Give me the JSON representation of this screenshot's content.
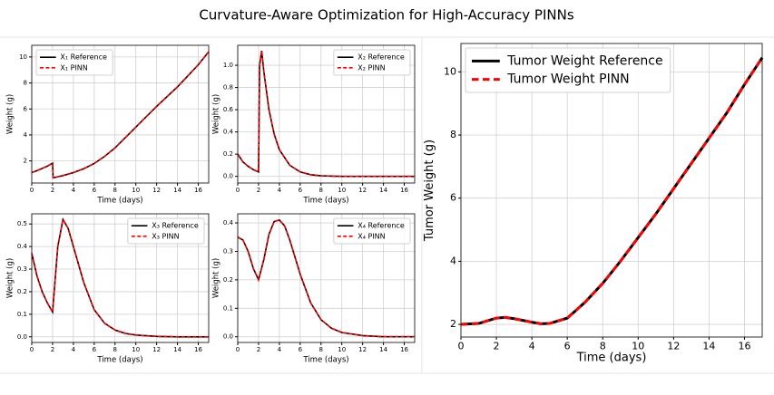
{
  "title": "Curvature-Aware Optimization for High-Accuracy PINNs",
  "chart_data": [
    {
      "type": "line",
      "xlabel": "Time (days)",
      "ylabel": "Weight (g)",
      "legend": "upper left",
      "grid": true,
      "x": [
        0,
        0.5,
        1,
        1.5,
        2,
        2.05,
        2.5,
        3,
        4,
        5,
        6,
        7,
        8,
        9,
        10,
        11,
        12,
        13,
        14,
        15,
        16,
        17
      ],
      "series": [
        {
          "name": "X₁ Reference",
          "color": "#000000",
          "linestyle": "solid",
          "values": [
            1.1,
            1.25,
            1.42,
            1.6,
            1.82,
            0.7,
            0.78,
            0.87,
            1.1,
            1.4,
            1.8,
            2.35,
            3.0,
            3.8,
            4.6,
            5.4,
            6.2,
            6.95,
            7.7,
            8.55,
            9.4,
            10.4
          ]
        },
        {
          "name": "X₁ PINN",
          "color": "#ff0000",
          "linestyle": "dashed",
          "values": [
            1.1,
            1.25,
            1.42,
            1.6,
            1.82,
            0.7,
            0.78,
            0.87,
            1.1,
            1.4,
            1.8,
            2.35,
            3.0,
            3.8,
            4.6,
            5.4,
            6.2,
            6.95,
            7.7,
            8.55,
            9.4,
            10.4
          ]
        }
      ],
      "xlim": [
        0,
        17
      ],
      "xticks": [
        0,
        2,
        4,
        6,
        8,
        10,
        12,
        14,
        16
      ],
      "ylim": [
        0.3,
        10.9
      ],
      "yticks": [
        2,
        4,
        6,
        8,
        10
      ]
    },
    {
      "type": "line",
      "xlabel": "Time (days)",
      "ylabel": "Weight (g)",
      "legend": "upper right",
      "grid": true,
      "x": [
        0,
        0.5,
        1,
        1.5,
        2,
        2.1,
        2.3,
        2.5,
        3,
        3.5,
        4,
        5,
        6,
        7,
        8,
        10,
        12,
        14,
        17
      ],
      "series": [
        {
          "name": "X₂ Reference",
          "color": "#000000",
          "linestyle": "solid",
          "values": [
            0.2,
            0.13,
            0.09,
            0.06,
            0.04,
            1.0,
            1.13,
            0.95,
            0.6,
            0.38,
            0.24,
            0.1,
            0.04,
            0.015,
            0.005,
            0,
            0,
            0,
            0
          ]
        },
        {
          "name": "X₂ PINN",
          "color": "#ff0000",
          "linestyle": "dashed",
          "values": [
            0.2,
            0.13,
            0.09,
            0.06,
            0.04,
            1.0,
            1.13,
            0.95,
            0.6,
            0.38,
            0.24,
            0.1,
            0.04,
            0.015,
            0.005,
            0,
            0,
            0,
            0
          ]
        }
      ],
      "xlim": [
        0,
        17
      ],
      "xticks": [
        0,
        2,
        4,
        6,
        8,
        10,
        12,
        14,
        16
      ],
      "ylim": [
        -0.06,
        1.18
      ],
      "yticks": [
        {
          "value": 0,
          "label": "0.0"
        },
        0.2,
        0.4,
        0.6,
        0.8,
        {
          "value": 1,
          "label": "1.0"
        }
      ]
    },
    {
      "type": "line",
      "xlabel": "Time (days)",
      "ylabel": "Weight (g)",
      "legend": "upper right",
      "grid": true,
      "x": [
        0,
        0.5,
        1,
        1.5,
        2,
        2.5,
        3,
        3.5,
        4,
        5,
        6,
        7,
        8,
        9,
        10,
        12,
        14,
        17
      ],
      "series": [
        {
          "name": "X₃ Reference",
          "color": "#000000",
          "linestyle": "solid",
          "values": [
            0.37,
            0.27,
            0.2,
            0.15,
            0.11,
            0.4,
            0.52,
            0.48,
            0.4,
            0.24,
            0.12,
            0.06,
            0.03,
            0.015,
            0.008,
            0.002,
            0,
            0
          ]
        },
        {
          "name": "X₃ PINN",
          "color": "#ff0000",
          "linestyle": "dashed",
          "values": [
            0.37,
            0.27,
            0.2,
            0.15,
            0.11,
            0.4,
            0.52,
            0.48,
            0.4,
            0.24,
            0.12,
            0.06,
            0.03,
            0.015,
            0.008,
            0.002,
            0,
            0
          ]
        }
      ],
      "xlim": [
        0,
        17
      ],
      "xticks": [
        0,
        2,
        4,
        6,
        8,
        10,
        12,
        14,
        16
      ],
      "ylim": [
        -0.025,
        0.545
      ],
      "yticks": [
        {
          "value": 0,
          "label": "0.0"
        },
        0.1,
        0.2,
        0.3,
        0.4,
        0.5
      ]
    },
    {
      "type": "line",
      "xlabel": "Time (days)",
      "ylabel": "Weight (g)",
      "legend": "upper right",
      "grid": true,
      "x": [
        0,
        0.5,
        1,
        1.5,
        2,
        2.5,
        3,
        3.5,
        4,
        4.5,
        5,
        6,
        7,
        8,
        9,
        10,
        12,
        14,
        17
      ],
      "series": [
        {
          "name": "X₄ Reference",
          "color": "#000000",
          "linestyle": "solid",
          "values": [
            0.35,
            0.34,
            0.3,
            0.24,
            0.2,
            0.27,
            0.36,
            0.405,
            0.41,
            0.39,
            0.34,
            0.22,
            0.12,
            0.06,
            0.03,
            0.015,
            0.004,
            0,
            0
          ]
        },
        {
          "name": "X₄ PINN",
          "color": "#ff0000",
          "linestyle": "dashed",
          "values": [
            0.35,
            0.34,
            0.3,
            0.24,
            0.2,
            0.27,
            0.36,
            0.405,
            0.41,
            0.39,
            0.34,
            0.22,
            0.12,
            0.06,
            0.03,
            0.015,
            0.004,
            0,
            0
          ]
        }
      ],
      "xlim": [
        0,
        17
      ],
      "xticks": [
        0,
        2,
        4,
        6,
        8,
        10,
        12,
        14,
        16
      ],
      "ylim": [
        -0.02,
        0.432
      ],
      "yticks": [
        {
          "value": 0,
          "label": "0.0"
        },
        0.1,
        0.2,
        0.3,
        0.4
      ]
    },
    {
      "type": "line",
      "xlabel": "Time (days)",
      "ylabel": "Tumor Weight (g)",
      "legend": "upper left",
      "grid": true,
      "x": [
        0,
        1,
        2,
        2.5,
        3,
        4,
        4.5,
        5,
        6,
        7,
        8,
        9,
        10,
        11,
        12,
        13,
        14,
        15,
        16,
        17
      ],
      "series": [
        {
          "name": "Tumor Weight Reference",
          "color": "#000000",
          "linestyle": "solid",
          "values": [
            2.0,
            2.03,
            2.2,
            2.22,
            2.18,
            2.07,
            2.02,
            2.03,
            2.2,
            2.7,
            3.3,
            4.0,
            4.75,
            5.5,
            6.3,
            7.1,
            7.9,
            8.7,
            9.6,
            10.45
          ]
        },
        {
          "name": "Tumor Weight PINN",
          "color": "#ff0000",
          "linestyle": "dashed",
          "values": [
            2.0,
            2.03,
            2.2,
            2.22,
            2.18,
            2.07,
            2.02,
            2.03,
            2.2,
            2.7,
            3.3,
            4.0,
            4.75,
            5.5,
            6.3,
            7.1,
            7.9,
            8.7,
            9.6,
            10.45
          ]
        }
      ],
      "xlim": [
        0,
        17
      ],
      "xticks": [
        0,
        2,
        4,
        6,
        8,
        10,
        12,
        14,
        16
      ],
      "ylim": [
        1.6,
        10.9
      ],
      "yticks": [
        2,
        4,
        6,
        8,
        10
      ]
    }
  ]
}
